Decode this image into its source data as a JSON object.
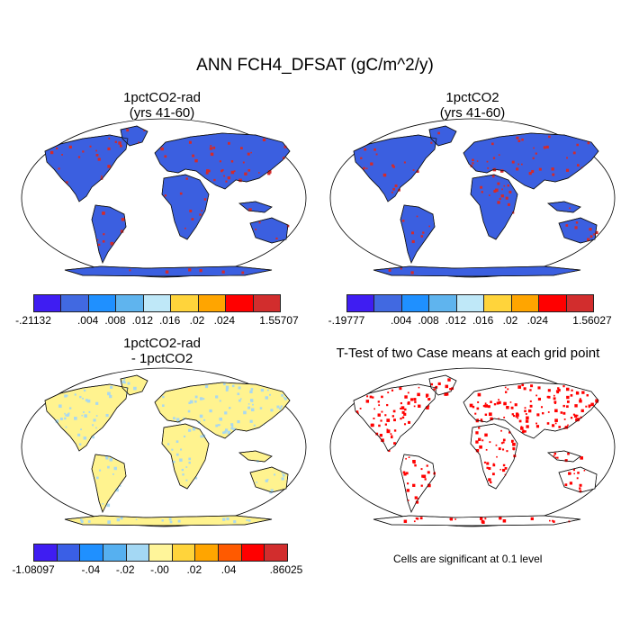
{
  "title": "ANN FCH4_DFSAT (gC/m^2/y)",
  "panels": [
    {
      "title1": "1pctCO2-rad",
      "title2": "(yrs 41-60)",
      "base": "#3b5fe0",
      "spots": "#d42a2a"
    },
    {
      "title1": "1pctCO2",
      "title2": "(yrs 41-60)",
      "base": "#3b5fe0",
      "spots": "#d42a2a"
    },
    {
      "title1": "1pctCO2-rad",
      "title2": "- 1pctCO2",
      "base": "#fff38f",
      "spots": "#a9d8f0"
    },
    {
      "title1": "T-Test of two Case means at each grid point",
      "title2": "",
      "base": "#ffffff",
      "spots": "#ff0000"
    }
  ],
  "colorbars": [
    {
      "colors": [
        "#3f1df2",
        "#4169e1",
        "#1f90ff",
        "#5fb4ee",
        "#bfe8f8",
        "#ffd43b",
        "#ffa500",
        "#ff0000",
        "#d22d2d"
      ],
      "labels": [
        "-.21132",
        ".004",
        ".008",
        ".012",
        ".016",
        ".02",
        ".024",
        "1.55707"
      ]
    },
    {
      "colors": [
        "#3f1df2",
        "#4169e1",
        "#1f90ff",
        "#5fb4ee",
        "#bfe8f8",
        "#ffd43b",
        "#ffa500",
        "#ff0000",
        "#d22d2d"
      ],
      "labels": [
        "-.19777",
        ".004",
        ".008",
        ".012",
        ".016",
        ".02",
        ".024",
        "1.56027"
      ]
    },
    {
      "colors": [
        "#3f1df2",
        "#3a5fe6",
        "#1f90ff",
        "#56b0f0",
        "#a4d8f4",
        "#fff59a",
        "#ffd43b",
        "#ffa500",
        "#ff5a00",
        "#ff0000",
        "#d22d2d"
      ],
      "labels": [
        "-1.08097",
        "-.04",
        "-.02",
        "-.00",
        ".02",
        ".04",
        ".86025"
      ]
    }
  ],
  "note": "Cells are significant at 0.1 level"
}
